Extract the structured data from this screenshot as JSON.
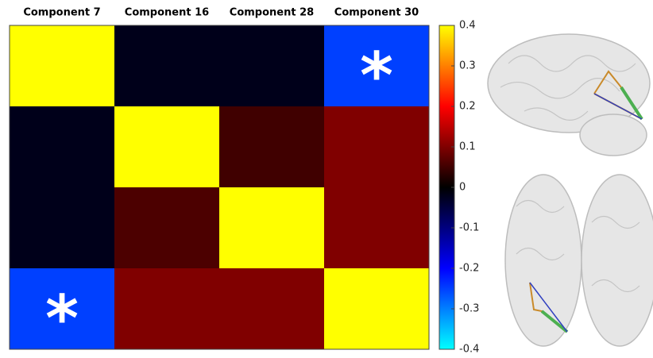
{
  "chart_data": {
    "type": "heatmap",
    "columns": [
      "Component 7",
      "Component 16",
      "Component 28",
      "Component 30"
    ],
    "values": [
      [
        0.4,
        -0.02,
        -0.02,
        -0.25
      ],
      [
        -0.02,
        0.4,
        0.05,
        0.1
      ],
      [
        -0.02,
        0.06,
        0.4,
        0.1
      ],
      [
        -0.25,
        0.1,
        0.1,
        0.4
      ]
    ],
    "annotations": [
      [
        null,
        null,
        null,
        "*"
      ],
      [
        null,
        null,
        null,
        null
      ],
      [
        null,
        null,
        null,
        null
      ],
      [
        "*",
        null,
        null,
        null
      ]
    ],
    "colormap": [
      "#00ffff",
      "#0000ff",
      "#000000",
      "#ff0000",
      "#ffff00"
    ],
    "clim": [
      -0.4,
      0.4
    ],
    "cticks": [
      0.4,
      0.3,
      0.2,
      0.1,
      0,
      -0.1,
      -0.2,
      -0.3,
      -0.4
    ]
  }
}
